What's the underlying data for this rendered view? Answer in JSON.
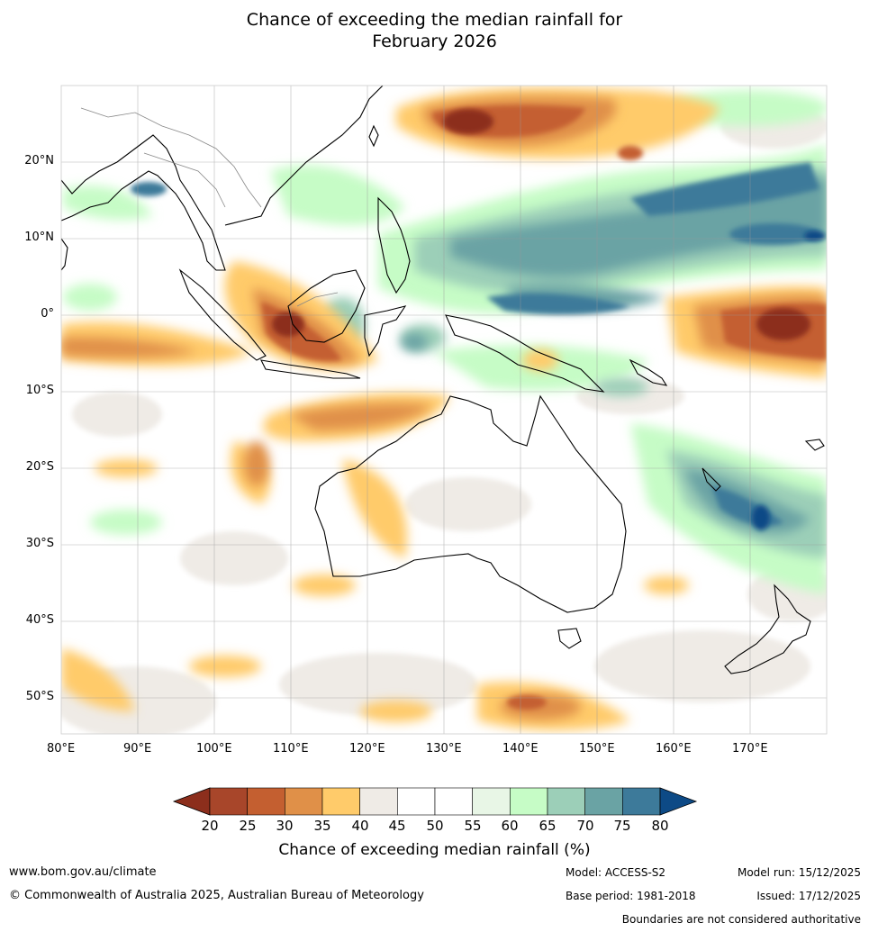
{
  "title_line1": "Chance of exceeding the median rainfall for",
  "title_line2": "February 2026",
  "lat_labels": [
    "20°N",
    "10°N",
    "0°",
    "10°S",
    "20°S",
    "30°S",
    "40°S",
    "50°S"
  ],
  "lon_labels": [
    "80°E",
    "90°E",
    "100°E",
    "110°E",
    "120°E",
    "130°E",
    "140°E",
    "150°E",
    "160°E",
    "170°E"
  ],
  "colorbar": {
    "title": "Chance of exceeding median rainfall (%)",
    "ticks": [
      "20",
      "25",
      "30",
      "35",
      "40",
      "45",
      "50",
      "55",
      "60",
      "65",
      "70",
      "75",
      "80"
    ],
    "colors": [
      "#8c2e1c",
      "#a8462a",
      "#c45f30",
      "#e09048",
      "#ffcb6a",
      "#efebe6",
      "#ffffff",
      "#ffffff",
      "#e8f6e6",
      "#c6fcc6",
      "#9ccfb8",
      "#6aa3a4",
      "#3d7a9a",
      "#0d4a86"
    ]
  },
  "footer": {
    "website": "www.bom.gov.au/climate",
    "copyright": "© Commonwealth of Australia 2025, Australian Bureau of Meteorology",
    "model": "Model: ACCESS-S2",
    "base_period": "Base period: 1981-2018",
    "model_run": "Model run: 15/12/2025",
    "issued": "Issued: 17/12/2025",
    "disclaimer": "Boundaries are not considered authoritative"
  }
}
